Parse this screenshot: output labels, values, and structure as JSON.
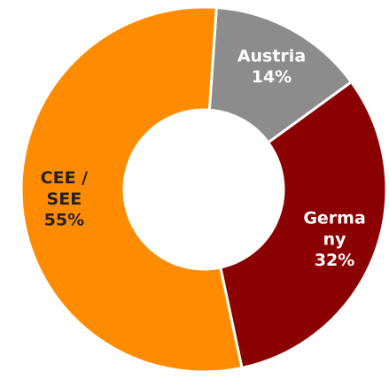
{
  "chart_data": {
    "type": "donut",
    "categories": [
      "Austria",
      "Germany",
      "CEE / SEE"
    ],
    "values": [
      14,
      32,
      55
    ],
    "value_labels": [
      "14%",
      "32%",
      "55%"
    ],
    "colors": [
      "#8c8c8c",
      "#8b0000",
      "#ff8c00"
    ]
  }
}
